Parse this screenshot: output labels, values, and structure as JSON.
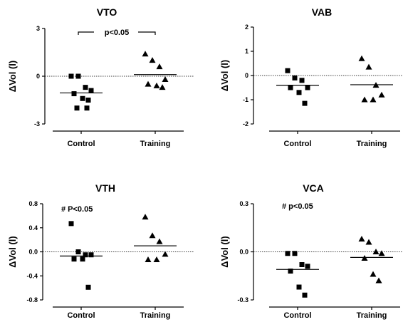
{
  "chart_data": [
    {
      "type": "scatter",
      "title": "VTO",
      "xlabel": "",
      "ylabel": "ΔVol (l)",
      "categories": [
        "Control",
        "Training"
      ],
      "ylim": [
        -3,
        3
      ],
      "yticks": [
        3,
        0,
        -3
      ],
      "series": [
        {
          "values": [
            0.0,
            0.0,
            -0.7,
            -0.9,
            -1.1,
            -1.4,
            -1.5,
            -2.0,
            -2.0
          ],
          "mean": -1.05
        },
        {
          "values": [
            1.4,
            1.0,
            0.6,
            -0.2,
            -0.5,
            -0.6,
            -0.7
          ],
          "mean": 0.1
        }
      ],
      "annotation": {
        "text": "p<0.05",
        "type": "bracket"
      }
    },
    {
      "type": "scatter",
      "title": "VAB",
      "xlabel": "",
      "ylabel": "ΔVol (l)",
      "categories": [
        "Control",
        "Training"
      ],
      "ylim": [
        -2,
        2
      ],
      "yticks": [
        2,
        1,
        0,
        -1,
        -2
      ],
      "series": [
        {
          "values": [
            0.2,
            -0.1,
            -0.2,
            -0.5,
            -0.5,
            -0.7,
            -1.15
          ],
          "mean": -0.4
        },
        {
          "values": [
            0.7,
            0.35,
            -0.4,
            -0.8,
            -1.0,
            -1.0
          ],
          "mean": -0.38
        }
      ]
    },
    {
      "type": "scatter",
      "title": "VTH",
      "xlabel": "",
      "ylabel": "ΔVol (l)",
      "categories": [
        "Control",
        "Training"
      ],
      "ylim": [
        -0.8,
        0.8
      ],
      "yticks": [
        0.8,
        0.4,
        0.0,
        -0.4,
        -0.8
      ],
      "series": [
        {
          "values": [
            0.47,
            0.0,
            -0.05,
            -0.05,
            -0.12,
            -0.12,
            -0.59
          ],
          "mean": -0.07
        },
        {
          "values": [
            0.58,
            0.27,
            0.17,
            -0.04,
            -0.13,
            -0.13
          ],
          "mean": 0.1
        }
      ],
      "annotation": {
        "text": "# P<0.05",
        "type": "text"
      }
    },
    {
      "type": "scatter",
      "title": "VCA",
      "xlabel": "",
      "ylabel": "ΔVol (l)",
      "categories": [
        "Control",
        "Training"
      ],
      "ylim": [
        -0.3,
        0.3
      ],
      "yticks": [
        0.3,
        0.0,
        -0.3
      ],
      "series": [
        {
          "values": [
            -0.01,
            -0.01,
            -0.08,
            -0.09,
            -0.12,
            -0.22,
            -0.27
          ],
          "mean": -0.11
        },
        {
          "values": [
            0.08,
            0.06,
            0.0,
            -0.01,
            -0.04,
            -0.14,
            -0.18
          ],
          "mean": -0.035
        }
      ],
      "annotation": {
        "text": "# p<0.05",
        "type": "text"
      }
    }
  ]
}
